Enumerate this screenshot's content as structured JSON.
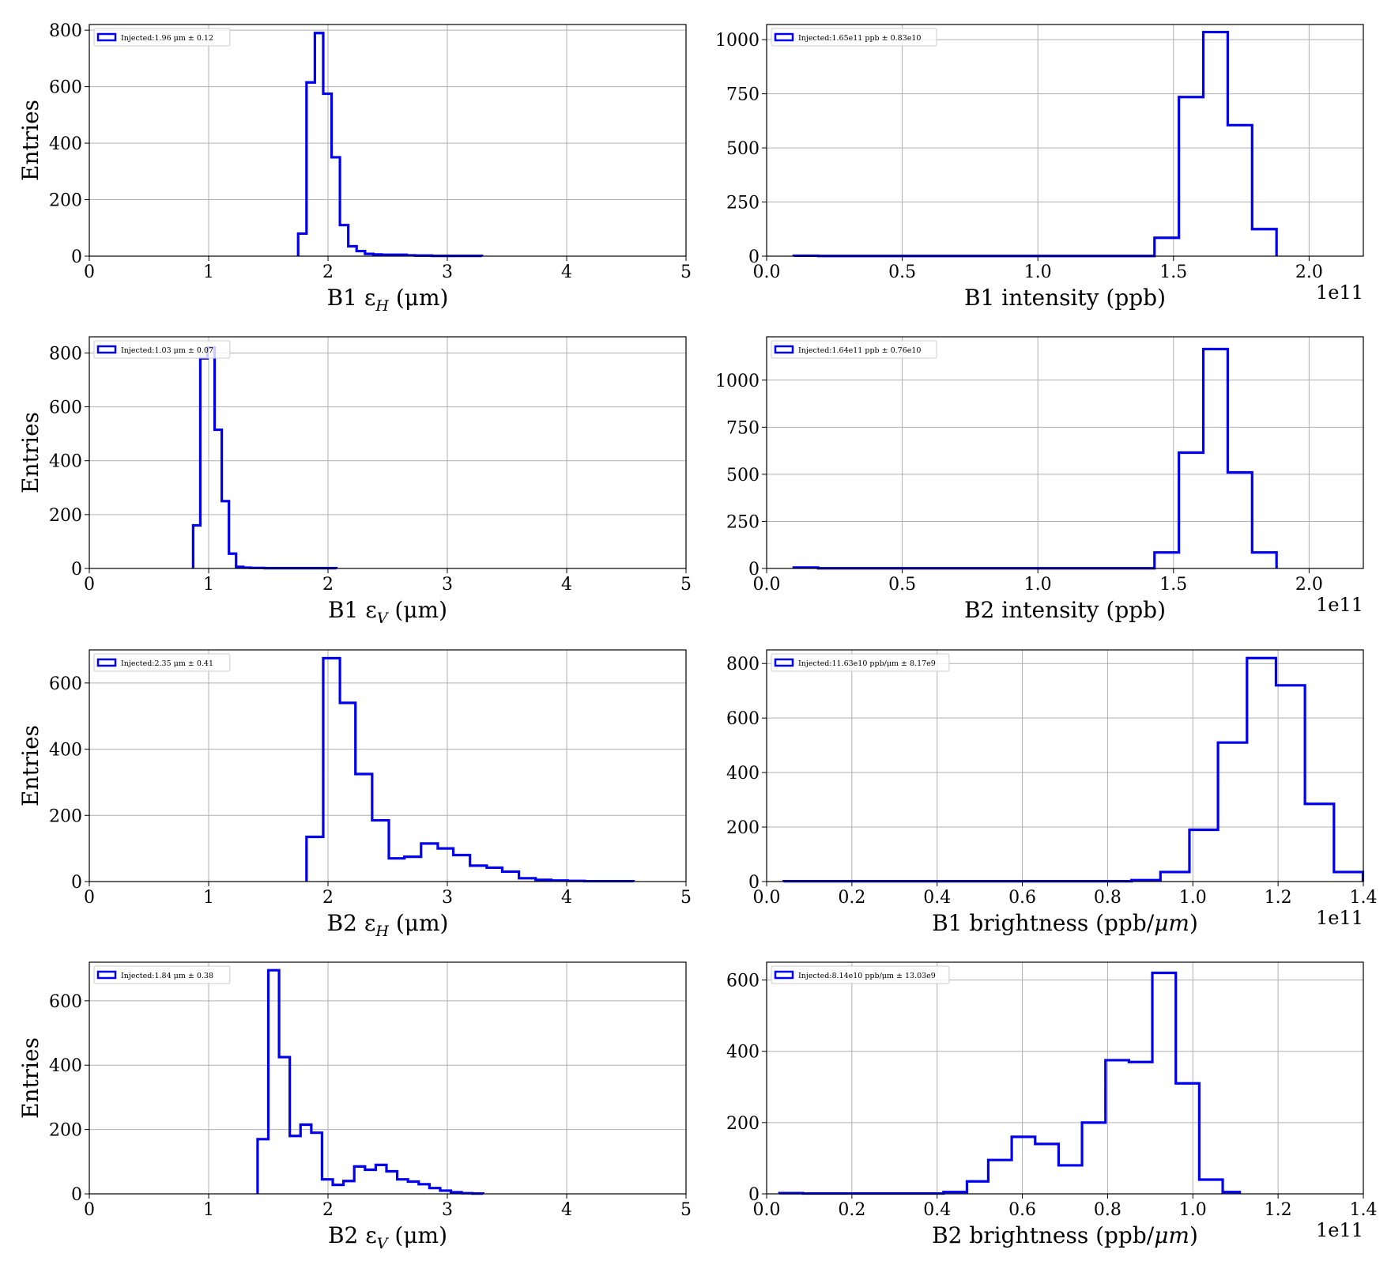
{
  "figure": {
    "background": "#ffffff",
    "line_color": "#0000ee",
    "grid_color": "#b0b0b0"
  },
  "chart_data": [
    {
      "type": "histogram",
      "position": "row1-left",
      "xlabel_main": "B1 ε",
      "xlabel_sub": "H",
      "xlabel_unit": " (μm)",
      "ylabel": "Entries",
      "xlim": [
        0,
        5
      ],
      "ylim": [
        0,
        820
      ],
      "xticks": [
        0,
        1,
        2,
        3,
        4,
        5
      ],
      "xtick_labels": [
        "0",
        "1",
        "2",
        "3",
        "4",
        "5"
      ],
      "yticks": [
        0,
        200,
        400,
        600,
        800
      ],
      "ytick_labels": [
        "0",
        "200",
        "400",
        "600",
        "800"
      ],
      "x_offset_label": "",
      "legend": "Injected:1.96 μm ± 0.12",
      "legend_loc": "upper left",
      "grid": true,
      "bin_edges": [
        1.75,
        1.82,
        1.89,
        1.96,
        2.03,
        2.1,
        2.17,
        2.24,
        2.31,
        2.38,
        2.45,
        2.52,
        2.59,
        2.66,
        2.73,
        2.8,
        2.87,
        2.94,
        3.01,
        3.08,
        3.15,
        3.22,
        3.29
      ],
      "counts": [
        80,
        615,
        790,
        575,
        350,
        110,
        35,
        18,
        8,
        6,
        5,
        5,
        5,
        3,
        2,
        2,
        1,
        1,
        1,
        1,
        1,
        1
      ]
    },
    {
      "type": "histogram",
      "position": "row1-right",
      "xlabel_main": "B1 intensity (ppb)",
      "xlabel_sub": "",
      "xlabel_unit": "",
      "ylabel": "",
      "xlim": [
        0.0,
        2.2
      ],
      "ylim": [
        0,
        1070
      ],
      "xticks": [
        0.0,
        0.5,
        1.0,
        1.5,
        2.0
      ],
      "xtick_labels": [
        "0.0",
        "0.5",
        "1.0",
        "1.5",
        "2.0"
      ],
      "yticks": [
        0,
        250,
        500,
        750,
        1000
      ],
      "ytick_labels": [
        "0",
        "250",
        "500",
        "750",
        "1000"
      ],
      "x_offset_label": "1e11",
      "legend": "Injected:1.65e11 ppb ± 0.83e10",
      "legend_loc": "upper left",
      "grid": true,
      "bin_edges": [
        0.1,
        0.19,
        0.28,
        0.37,
        0.46,
        0.55,
        0.64,
        0.73,
        0.82,
        0.91,
        1.0,
        1.09,
        1.18,
        1.27,
        1.36,
        1.43,
        1.52,
        1.61,
        1.7,
        1.79,
        1.88
      ],
      "counts": [
        2,
        1,
        1,
        1,
        1,
        1,
        1,
        1,
        1,
        1,
        1,
        1,
        1,
        1,
        1,
        85,
        735,
        1035,
        605,
        125
      ]
    },
    {
      "type": "histogram",
      "position": "row2-left",
      "xlabel_main": "B1 ε",
      "xlabel_sub": "V",
      "xlabel_unit": " (μm)",
      "ylabel": "Entries",
      "xlim": [
        0,
        5
      ],
      "ylim": [
        0,
        860
      ],
      "xticks": [
        0,
        1,
        2,
        3,
        4,
        5
      ],
      "xtick_labels": [
        "0",
        "1",
        "2",
        "3",
        "4",
        "5"
      ],
      "yticks": [
        0,
        200,
        400,
        600,
        800
      ],
      "ytick_labels": [
        "0",
        "200",
        "400",
        "600",
        "800"
      ],
      "x_offset_label": "",
      "legend": "Injected:1.03 μm ± 0.07",
      "legend_loc": "upper left",
      "grid": true,
      "bin_edges": [
        0.87,
        0.93,
        0.99,
        1.05,
        1.11,
        1.17,
        1.23,
        1.29,
        1.35,
        1.41,
        1.47,
        1.53,
        1.59,
        1.65,
        1.71,
        1.77,
        1.83,
        1.89,
        1.95,
        2.01,
        2.07
      ],
      "counts": [
        160,
        780,
        820,
        515,
        250,
        55,
        6,
        3,
        2,
        2,
        1,
        1,
        1,
        1,
        1,
        1,
        1,
        1,
        1,
        1
      ]
    },
    {
      "type": "histogram",
      "position": "row2-right",
      "xlabel_main": "B2 intensity (ppb)",
      "xlabel_sub": "",
      "xlabel_unit": "",
      "ylabel": "",
      "xlim": [
        0.0,
        2.2
      ],
      "ylim": [
        0,
        1230
      ],
      "xticks": [
        0.0,
        0.5,
        1.0,
        1.5,
        2.0
      ],
      "xtick_labels": [
        "0.0",
        "0.5",
        "1.0",
        "1.5",
        "2.0"
      ],
      "yticks": [
        0,
        250,
        500,
        750,
        1000
      ],
      "ytick_labels": [
        "0",
        "250",
        "500",
        "750",
        "1000"
      ],
      "x_offset_label": "1e11",
      "legend": "Injected:1.64e11 ppb ± 0.76e10",
      "legend_loc": "upper left",
      "grid": true,
      "bin_edges": [
        0.1,
        0.19,
        0.28,
        0.37,
        0.46,
        0.55,
        0.64,
        0.73,
        0.82,
        0.91,
        1.0,
        1.09,
        1.18,
        1.27,
        1.36,
        1.43,
        1.52,
        1.61,
        1.7,
        1.79,
        1.88
      ],
      "counts": [
        5,
        1,
        1,
        1,
        1,
        1,
        1,
        1,
        1,
        1,
        1,
        1,
        1,
        1,
        1,
        85,
        615,
        1165,
        510,
        85
      ]
    },
    {
      "type": "histogram",
      "position": "row3-left",
      "xlabel_main": "B2 ε",
      "xlabel_sub": "H",
      "xlabel_unit": " (μm)",
      "ylabel": "Entries",
      "xlim": [
        0,
        5
      ],
      "ylim": [
        0,
        700
      ],
      "xticks": [
        0,
        1,
        2,
        3,
        4,
        5
      ],
      "xtick_labels": [
        "0",
        "1",
        "2",
        "3",
        "4",
        "5"
      ],
      "yticks": [
        0,
        200,
        400,
        600
      ],
      "ytick_labels": [
        "0",
        "200",
        "400",
        "600"
      ],
      "x_offset_label": "",
      "legend": "Injected:2.35 μm ± 0.41",
      "legend_loc": "upper left",
      "grid": true,
      "bin_edges": [
        1.82,
        1.96,
        2.1,
        2.23,
        2.37,
        2.51,
        2.64,
        2.78,
        2.92,
        3.05,
        3.19,
        3.33,
        3.46,
        3.6,
        3.74,
        3.87,
        4.01,
        4.15,
        4.28,
        4.42,
        4.56
      ],
      "counts": [
        135,
        675,
        540,
        325,
        185,
        70,
        75,
        115,
        100,
        80,
        48,
        42,
        30,
        10,
        5,
        3,
        2,
        1,
        1,
        1
      ]
    },
    {
      "type": "histogram",
      "position": "row3-right",
      "xlabel_main": "B1 brightness (ppb/",
      "xlabel_sub": "",
      "xlabel_unit": "",
      "xlabel_italic": "μm",
      "xlabel_tail": ")",
      "ylabel": "",
      "xlim": [
        0.0,
        1.4
      ],
      "ylim": [
        0,
        850
      ],
      "xticks": [
        0.0,
        0.2,
        0.4,
        0.6,
        0.8,
        1.0,
        1.2,
        1.4
      ],
      "xtick_labels": [
        "0.0",
        "0.2",
        "0.4",
        "0.6",
        "0.8",
        "1.0",
        "1.2",
        "1.4"
      ],
      "yticks": [
        0,
        200,
        400,
        600,
        800
      ],
      "ytick_labels": [
        "0",
        "200",
        "400",
        "600",
        "800"
      ],
      "x_offset_label": "1e11",
      "legend": "Injected:11.63e10 ppb/μm ± 8.17e9",
      "legend_loc": "upper left",
      "grid": true,
      "bin_edges": [
        0.04,
        0.108,
        0.176,
        0.244,
        0.312,
        0.38,
        0.448,
        0.516,
        0.584,
        0.652,
        0.72,
        0.788,
        0.856,
        0.924,
        0.992,
        1.059,
        1.127,
        1.195,
        1.263,
        1.331,
        1.399
      ],
      "counts": [
        1,
        1,
        1,
        1,
        1,
        1,
        1,
        1,
        1,
        1,
        1,
        1,
        5,
        35,
        190,
        510,
        820,
        720,
        285,
        35
      ]
    },
    {
      "type": "histogram",
      "position": "row4-left",
      "xlabel_main": "B2 ε",
      "xlabel_sub": "V",
      "xlabel_unit": " (μm)",
      "ylabel": "Entries",
      "xlim": [
        0,
        5
      ],
      "ylim": [
        0,
        720
      ],
      "xticks": [
        0,
        1,
        2,
        3,
        4,
        5
      ],
      "xtick_labels": [
        "0",
        "1",
        "2",
        "3",
        "4",
        "5"
      ],
      "yticks": [
        0,
        200,
        400,
        600
      ],
      "ytick_labels": [
        "0",
        "200",
        "400",
        "600"
      ],
      "x_offset_label": "",
      "legend": "Injected:1.84 μm ± 0.38",
      "legend_loc": "upper left",
      "grid": true,
      "bin_edges": [
        1.41,
        1.5,
        1.59,
        1.68,
        1.77,
        1.86,
        1.95,
        2.04,
        2.13,
        2.22,
        2.31,
        2.4,
        2.49,
        2.58,
        2.67,
        2.76,
        2.85,
        2.94,
        3.03,
        3.12,
        3.21,
        3.3
      ],
      "counts": [
        170,
        695,
        425,
        180,
        215,
        190,
        45,
        28,
        40,
        85,
        75,
        90,
        70,
        45,
        38,
        30,
        18,
        10,
        5,
        2,
        1
      ]
    },
    {
      "type": "histogram",
      "position": "row4-right",
      "xlabel_main": "B2 brightness (ppb/",
      "xlabel_sub": "",
      "xlabel_unit": "",
      "xlabel_italic": "μm",
      "xlabel_tail": ")",
      "ylabel": "",
      "xlim": [
        0.0,
        1.4
      ],
      "ylim": [
        0,
        650
      ],
      "xticks": [
        0.0,
        0.2,
        0.4,
        0.6,
        0.8,
        1.0,
        1.2,
        1.4
      ],
      "xtick_labels": [
        "0.0",
        "0.2",
        "0.4",
        "0.6",
        "0.8",
        "1.0",
        "1.2",
        "1.4"
      ],
      "yticks": [
        0,
        200,
        400,
        600
      ],
      "ytick_labels": [
        "0",
        "200",
        "400",
        "600"
      ],
      "x_offset_label": "1e11",
      "legend": "Injected:8.14e10 ppb/μm ± 13.03e9",
      "legend_loc": "upper left",
      "grid": true,
      "bin_edges": [
        0.03,
        0.085,
        0.14,
        0.195,
        0.25,
        0.305,
        0.36,
        0.415,
        0.47,
        0.52,
        0.575,
        0.63,
        0.685,
        0.74,
        0.795,
        0.85,
        0.905,
        0.96,
        1.015,
        1.07,
        1.11
      ],
      "counts": [
        2,
        1,
        1,
        1,
        1,
        1,
        1,
        5,
        35,
        95,
        160,
        140,
        80,
        200,
        375,
        370,
        620,
        310,
        40,
        5
      ]
    }
  ]
}
